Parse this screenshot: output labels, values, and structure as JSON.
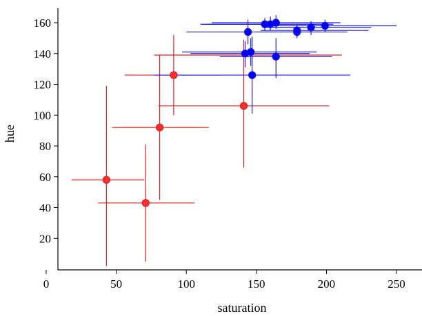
{
  "chart_data": {
    "type": "scatter",
    "title": "",
    "xlabel": "saturation",
    "ylabel": "hue",
    "xlim": [
      0,
      270
    ],
    "ylim": [
      0,
      170
    ],
    "x_ticks": [
      0,
      50,
      100,
      150,
      200,
      250
    ],
    "y_ticks": [
      20,
      40,
      60,
      80,
      100,
      120,
      140,
      160
    ],
    "grid": false,
    "legend": "none",
    "series": [
      {
        "color": "#ee1c1c",
        "marker_color": "#f03030",
        "points": [
          {
            "x": 43,
            "y": 58,
            "x_err": [
              18,
              70
            ],
            "y_err": [
              2,
              119
            ]
          },
          {
            "x": 71,
            "y": 43,
            "x_err": [
              37,
              106
            ],
            "y_err": [
              5,
              81
            ]
          },
          {
            "x": 81,
            "y": 92,
            "x_err": [
              47,
              116
            ],
            "y_err": [
              45,
              139
            ]
          },
          {
            "x": 91,
            "y": 126,
            "x_err": [
              56,
              125
            ],
            "y_err": [
              100,
              152
            ]
          },
          {
            "x": 141,
            "y": 106,
            "x_err": [
              80,
              202
            ],
            "y_err": [
              66,
              149
            ]
          }
        ],
        "extra_hbars": [
          {
            "y": 139,
            "x_err": [
              77,
              211
            ]
          }
        ]
      },
      {
        "color": "#1c1cee",
        "marker_color": "#0000ee",
        "points": [
          {
            "x": 147,
            "y": 126,
            "x_err": [
              77,
              217
            ],
            "y_err": [
              101,
              151
            ]
          },
          {
            "x": 164,
            "y": 138,
            "x_err": [
              124,
              204
            ],
            "y_err": [
              124,
              150
            ]
          },
          {
            "x": 142,
            "y": 140,
            "x_err": [
              103,
              188
            ],
            "y_err": [
              131,
              148
            ]
          },
          {
            "x": 146,
            "y": 141,
            "x_err": [
              97,
              193
            ],
            "y_err": [
              132,
              150
            ]
          },
          {
            "x": 144,
            "y": 154,
            "x_err": [
              100,
              196
            ],
            "y_err": [
              146,
              162
            ]
          },
          {
            "x": 179,
            "y": 154,
            "x_err": [
              150,
              215
            ],
            "y_err": [
              150,
              158
            ]
          },
          {
            "x": 179,
            "y": 155,
            "x_err": [
              153,
              230
            ],
            "y_err": [
              151,
              159
            ]
          },
          {
            "x": 189,
            "y": 157,
            "x_err": [
              156,
              232
            ],
            "y_err": [
              152,
              161
            ]
          },
          {
            "x": 199,
            "y": 158,
            "x_err": [
              159,
              250
            ],
            "y_err": [
              154,
              162
            ]
          },
          {
            "x": 156,
            "y": 159,
            "x_err": [
              110,
              201
            ],
            "y_err": [
              155,
              163
            ]
          },
          {
            "x": 160,
            "y": 159,
            "x_err": [
              114,
              205
            ],
            "y_err": [
              155,
              164
            ]
          },
          {
            "x": 164,
            "y": 160,
            "x_err": [
              118,
              210
            ],
            "y_err": [
              156,
              165
            ]
          }
        ],
        "extra_hbars": []
      }
    ]
  }
}
